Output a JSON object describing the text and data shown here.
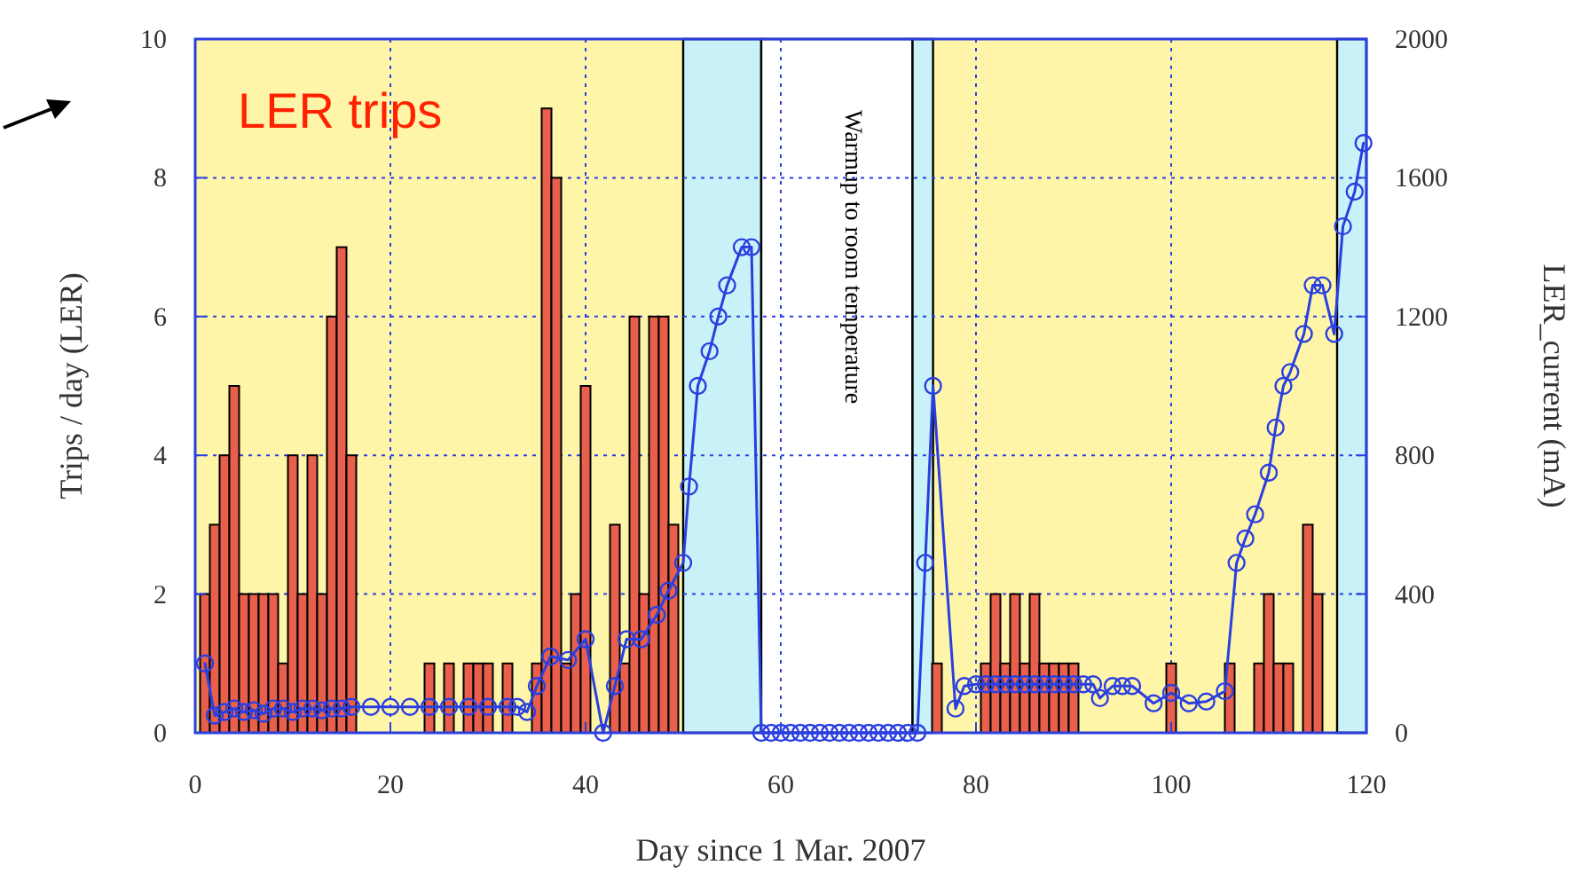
{
  "chart_data": {
    "type": "bar",
    "title": "LER trips",
    "xlabel": "Day since 1 Mar. 2007",
    "ylabel": "Trips / day (LER)",
    "y2label": "LER_current (mA)",
    "xlim": [
      0,
      120
    ],
    "xticks": [
      0,
      20,
      40,
      60,
      80,
      100,
      120
    ],
    "ylim": [
      0,
      10
    ],
    "yticks": [
      0,
      2,
      4,
      6,
      8,
      10
    ],
    "y2lim": [
      0,
      2000
    ],
    "y2ticks": [
      0,
      400,
      800,
      1200,
      1600,
      2000
    ],
    "grid": true,
    "bands": [
      {
        "axis": "x",
        "from": 50,
        "to": 58,
        "color": "#c8f2f7"
      },
      {
        "axis": "x",
        "from": 58,
        "to": 73.5,
        "color": "#ffffff",
        "label": "Warmup to room temperature"
      },
      {
        "axis": "x",
        "from": 73.5,
        "to": 75.6,
        "color": "#c8f2f7"
      },
      {
        "axis": "x",
        "from": 117,
        "to": 120,
        "color": "#c8f2f7"
      }
    ],
    "series": [
      {
        "color": "#e8604c",
        "x": [
          1,
          2,
          3,
          4,
          5,
          6,
          7,
          8,
          9,
          10,
          11,
          12,
          13,
          14,
          15,
          16,
          24,
          26,
          28,
          29,
          30,
          32,
          35,
          36,
          37,
          38,
          39,
          40,
          43,
          44,
          45,
          46,
          47,
          48,
          49,
          76,
          81,
          82,
          83,
          84,
          85,
          86,
          87,
          88,
          89,
          90,
          100,
          106,
          109,
          110,
          111,
          112,
          114,
          115
        ],
        "values": [
          2,
          3,
          4,
          5,
          2,
          2,
          2,
          2,
          1,
          4,
          2,
          4,
          2,
          6,
          7,
          4,
          1,
          1,
          1,
          1,
          1,
          1,
          1,
          9,
          8,
          1,
          2,
          5,
          3,
          1,
          6,
          2,
          6,
          6,
          3,
          1,
          1,
          2,
          1,
          2,
          1,
          2,
          1,
          1,
          1,
          1,
          1,
          1,
          1,
          2,
          1,
          1,
          3,
          2
        ]
      },
      {
        "type": "line",
        "axis": "y2",
        "color": "#2a3fe0",
        "marker": "circle",
        "line_style": "solid",
        "x": [
          1,
          2,
          3,
          4,
          5,
          6,
          7,
          8,
          9,
          10,
          11,
          12,
          13,
          14,
          15,
          16,
          18,
          20,
          22,
          24,
          26,
          28,
          30,
          32,
          33,
          34,
          35,
          36.4,
          38.2,
          40,
          41.8,
          43,
          44.2,
          45.7,
          47.3,
          48.5,
          50,
          50.6,
          51.5,
          52.7,
          53.6,
          54.5,
          56,
          57,
          58,
          59,
          60,
          61,
          62,
          63,
          64,
          65,
          66,
          67,
          68,
          69,
          70,
          71,
          72,
          73,
          74,
          74.8,
          75.6,
          77.9,
          78.8,
          80,
          81,
          82,
          83,
          84,
          85,
          86,
          87,
          88,
          89,
          90,
          91,
          92,
          92.7,
          94,
          95,
          96,
          98.2,
          100,
          101.8,
          103.6,
          105.5,
          106.7,
          107.6,
          108.6,
          110,
          110.7,
          111.5,
          112.2,
          113.6,
          114.5,
          115.5,
          116.7,
          117.6,
          118.8,
          119.7
        ],
        "values": [
          200,
          50,
          60,
          70,
          60,
          65,
          55,
          70,
          70,
          60,
          70,
          70,
          65,
          70,
          70,
          75,
          75,
          75,
          75,
          75,
          75,
          75,
          75,
          75,
          75,
          60,
          135,
          220,
          210,
          270,
          0,
          135,
          270,
          270,
          340,
          410,
          490,
          710,
          1000,
          1100,
          1200,
          1290,
          1400,
          1400,
          0,
          0,
          0,
          0,
          0,
          0,
          0,
          0,
          0,
          0,
          0,
          0,
          0,
          0,
          0,
          0,
          0,
          490,
          1000,
          70,
          135,
          140,
          140,
          140,
          140,
          140,
          140,
          140,
          140,
          140,
          140,
          140,
          140,
          140,
          100,
          135,
          135,
          135,
          85,
          115,
          85,
          90,
          120,
          490,
          560,
          630,
          750,
          880,
          1000,
          1040,
          1150,
          1290,
          1290,
          1150,
          1460,
          1560,
          1700
        ]
      }
    ]
  }
}
